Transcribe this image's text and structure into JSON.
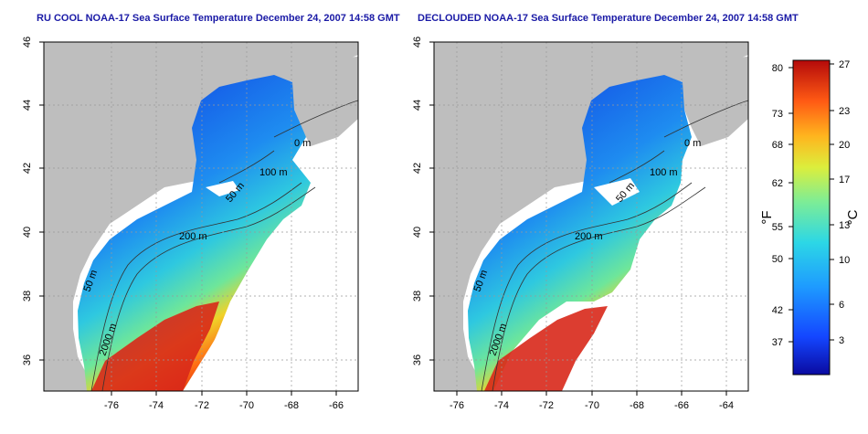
{
  "titles": {
    "left": "RU COOL NOAA-17 Sea Surface Temperature December 24, 2007 14:58 GMT",
    "right": "DECLOUDED NOAA-17 Sea Surface Temperature December 24, 2007 14:58 GMT"
  },
  "axes": {
    "x_ticks": [
      "-76",
      "-74",
      "-72",
      "-70",
      "-68",
      "-66",
      "-64"
    ],
    "y_ticks": [
      "36",
      "38",
      "40",
      "42",
      "44",
      "46"
    ]
  },
  "contours": {
    "c50": "50 m",
    "c100": "100 m",
    "c200": "200 m",
    "c2000": "2000 m",
    "c0": "0 m"
  },
  "colorbar": {
    "fahrenheit_ticks": [
      "80",
      "73",
      "68",
      "62",
      "55",
      "50",
      "42",
      "37"
    ],
    "celsius_ticks": [
      "27",
      "23",
      "20",
      "17",
      "13",
      "10",
      "6",
      "3"
    ],
    "f_unit": "°F",
    "c_unit": "°C"
  },
  "colors": {
    "land": "#bebebe",
    "title": "#1a1aa6",
    "cold": "#0a14a0",
    "warm": "#c81e14"
  }
}
